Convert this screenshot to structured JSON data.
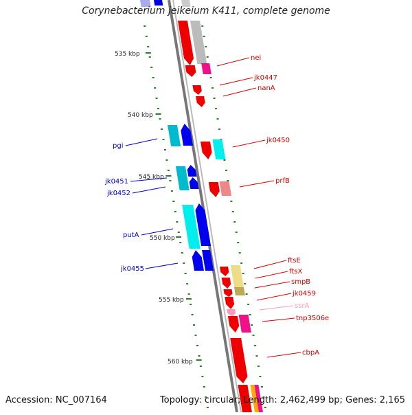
{
  "title": "Corynebacterium jeikeium K411, complete genome",
  "footer": {
    "accession": "Accession: NC_007164",
    "summary": "Topology: circular; Length: 2,462,499 bp; Genes: 2,165"
  },
  "colors": {
    "backbone": "#8a8a8a",
    "tick": "#2a7d2a",
    "label_red": "#dd0000",
    "label_blue": "#0000cc",
    "label_pink": "#ff99bb"
  },
  "kbp_markers": [
    "535 kbp",
    "540 kbp",
    "545 kbp",
    "550 kbp",
    "555 kbp",
    "560 kbp"
  ],
  "gene_labels": {
    "right": [
      "nei",
      "jk0447",
      "nanA",
      "jk0450",
      "prfB",
      "ftsE",
      "ftsX",
      "smpB",
      "jk0459",
      "ssrA",
      "tnp3506e",
      "cbpA"
    ],
    "left": [
      "pgi",
      "jk0451",
      "jk0452",
      "putA",
      "jk0455"
    ]
  }
}
